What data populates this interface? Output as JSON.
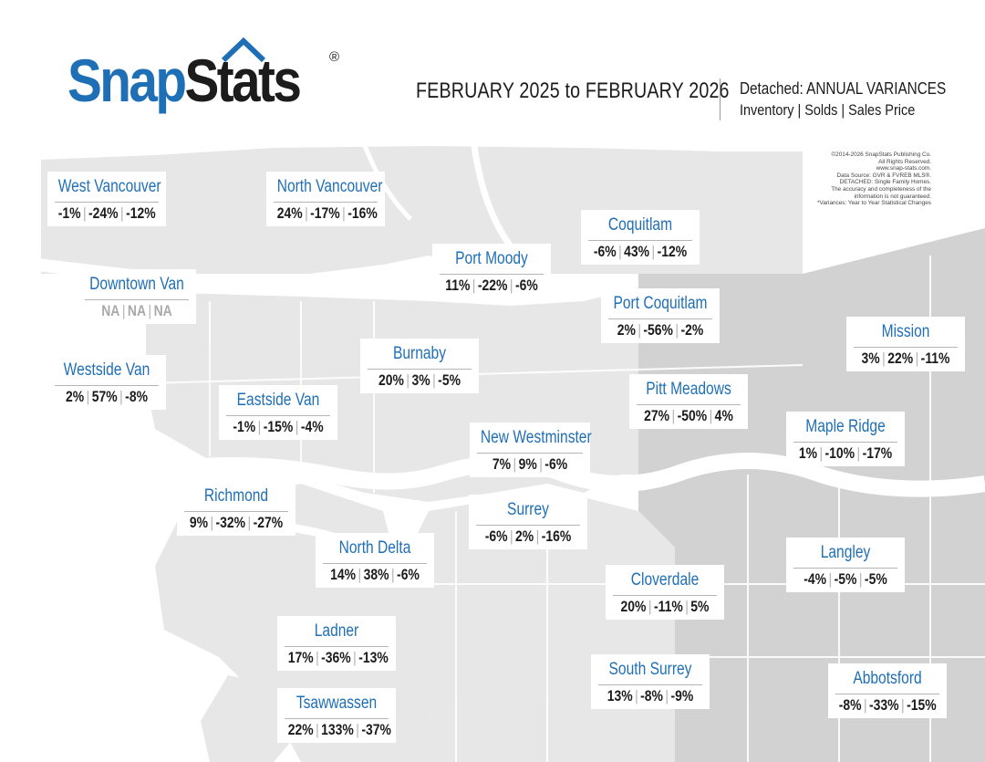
{
  "brand": {
    "part1": "Snap",
    "part2": "Stats",
    "registered": "®"
  },
  "header": {
    "period": "FEBRUARY 2025 to FEBRUARY 2026",
    "type": "Detached: ANNUAL VARIANCES",
    "metrics": "Inventory | Solds | Sales Price"
  },
  "credits": [
    "©2014-2026 SnapStats Publishing Co.",
    "All Rights Reserved.",
    "www.snap-stats.com.",
    "Data Source: GVR & FVREB MLS®.",
    "DETACHED: Single Family Homes.",
    "The accuracy and completeness of the",
    "information is not guaranteed.",
    "*Variances: Year to Year Statistical Changes"
  ],
  "colors": {
    "brand_blue": "#1f6fb7",
    "land": "#e7e7e7",
    "land_dark": "#d2d2d2",
    "water": "#ffffff",
    "text": "#1c1c1c",
    "na_text": "#a9a9a9"
  },
  "regions": [
    {
      "name": "West Vancouver",
      "inventory": "-1%",
      "solds": "-24%",
      "price": "-12%"
    },
    {
      "name": "North Vancouver",
      "inventory": "24%",
      "solds": "-17%",
      "price": "-16%"
    },
    {
      "name": "Coquitlam",
      "inventory": "-6%",
      "solds": "43%",
      "price": "-12%"
    },
    {
      "name": "Port Moody",
      "inventory": "11%",
      "solds": "-22%",
      "price": "-6%"
    },
    {
      "name": "Downtown Van",
      "inventory": "NA",
      "solds": "NA",
      "price": "NA",
      "na": true
    },
    {
      "name": "Port Coquitlam",
      "inventory": "2%",
      "solds": "-56%",
      "price": "-2%"
    },
    {
      "name": "Mission",
      "inventory": "3%",
      "solds": "22%",
      "price": "-11%"
    },
    {
      "name": "Burnaby",
      "inventory": "20%",
      "solds": "3%",
      "price": "-5%"
    },
    {
      "name": "Westside Van",
      "inventory": "2%",
      "solds": "57%",
      "price": "-8%"
    },
    {
      "name": "Pitt Meadows",
      "inventory": "27%",
      "solds": "-50%",
      "price": "4%"
    },
    {
      "name": "Eastside Van",
      "inventory": "-1%",
      "solds": "-15%",
      "price": "-4%"
    },
    {
      "name": "Maple Ridge",
      "inventory": "1%",
      "solds": "-10%",
      "price": "-17%"
    },
    {
      "name": "New Westminster",
      "inventory": "7%",
      "solds": "9%",
      "price": "-6%"
    },
    {
      "name": "Richmond",
      "inventory": "9%",
      "solds": "-32%",
      "price": "-27%"
    },
    {
      "name": "Surrey",
      "inventory": "-6%",
      "solds": "2%",
      "price": "-16%"
    },
    {
      "name": "North Delta",
      "inventory": "14%",
      "solds": "38%",
      "price": "-6%"
    },
    {
      "name": "Langley",
      "inventory": "-4%",
      "solds": "-5%",
      "price": "-5%"
    },
    {
      "name": "Cloverdale",
      "inventory": "20%",
      "solds": "-11%",
      "price": "5%"
    },
    {
      "name": "Ladner",
      "inventory": "17%",
      "solds": "-36%",
      "price": "-13%"
    },
    {
      "name": "South Surrey",
      "inventory": "13%",
      "solds": "-8%",
      "price": "-9%"
    },
    {
      "name": "Abbotsford",
      "inventory": "-8%",
      "solds": "-33%",
      "price": "-15%"
    },
    {
      "name": "Tsawwassen",
      "inventory": "22%",
      "solds": "133%",
      "price": "-37%"
    }
  ]
}
